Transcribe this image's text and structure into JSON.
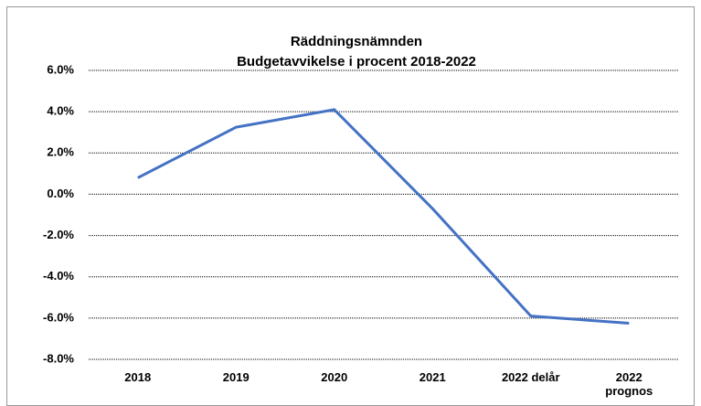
{
  "chart_data": {
    "type": "line",
    "title": "Räddningsnämnden",
    "subtitle": "Budgetavvikelse i procent 2018-2022",
    "categories": [
      "2018",
      "2019",
      "2020",
      "2021",
      "2022 delår",
      "2022 prognos"
    ],
    "series": [
      {
        "name": "Budgetavvikelse",
        "color": "#4472c4",
        "values": [
          0.8,
          3.25,
          4.1,
          -0.7,
          -5.9,
          -6.25
        ]
      }
    ],
    "ylim": [
      -8,
      6
    ],
    "yticks": [
      {
        "value": -8,
        "label": "-8.0%"
      },
      {
        "value": -6,
        "label": "-6.0%"
      },
      {
        "value": -4,
        "label": "-4.0%"
      },
      {
        "value": -2,
        "label": "-2.0%"
      },
      {
        "value": 0,
        "label": "0.0%"
      },
      {
        "value": 2,
        "label": "2.0%"
      },
      {
        "value": 4,
        "label": "4.0%"
      },
      {
        "value": 6,
        "label": "6.0%"
      }
    ],
    "grid": true
  }
}
